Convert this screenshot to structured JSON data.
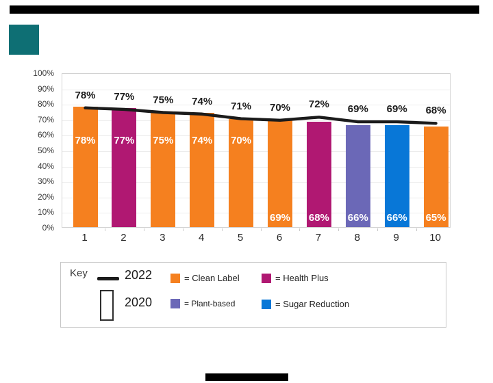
{
  "decor": {
    "top_bar_color": "#000000",
    "logo_block_color": "#0e6f74",
    "bottom_bar_color": "#000000"
  },
  "chart_data": {
    "type": "bar",
    "title": "",
    "xlabel": "",
    "ylabel": "",
    "categories": [
      "1",
      "2",
      "3",
      "4",
      "5",
      "6",
      "7",
      "8",
      "9",
      "10"
    ],
    "series": [
      {
        "name": "2020",
        "type": "bar",
        "values": [
          78,
          77,
          75,
          74,
          70,
          69,
          68,
          66,
          66,
          65
        ],
        "bar_colors": [
          "#f5801f",
          "#b01872",
          "#f5801f",
          "#f5801f",
          "#f5801f",
          "#f5801f",
          "#b01872",
          "#6b68b7",
          "#0877d7",
          "#f5801f"
        ],
        "bar_brands": [
          "Clean Label",
          "Health Plus",
          "Clean Label",
          "Clean Label",
          "Clean Label",
          "Clean Label",
          "Health Plus",
          "Plant-based",
          "Sugar Reduction",
          "Clean Label"
        ],
        "value_label_position": [
          "upper",
          "upper",
          "upper",
          "upper",
          "upper",
          "lower",
          "lower",
          "lower",
          "lower",
          "lower"
        ],
        "value_label_suffix": "%"
      },
      {
        "name": "2022",
        "type": "line",
        "values": [
          78,
          77,
          75,
          74,
          71,
          70,
          72,
          69,
          69,
          68
        ],
        "color": "#1b1b1b",
        "value_label_suffix": "%"
      }
    ],
    "ylim": [
      0,
      100
    ],
    "ytick_labels": [
      "0%",
      "10%",
      "20%",
      "30%",
      "40%",
      "50%",
      "60%",
      "70%",
      "80%",
      "90%",
      "100%"
    ],
    "grid": true,
    "legend_position": "bottom-box"
  },
  "legend": {
    "title": "Key",
    "entries": [
      {
        "swatch": "line",
        "label": "2022"
      },
      {
        "swatch": "open-bar",
        "label": "2020"
      }
    ],
    "brand_items": [
      {
        "label": "= Clean Label",
        "color": "#f5801f"
      },
      {
        "label": "= Health Plus",
        "color": "#b01872"
      },
      {
        "label": "= Plant-based",
        "color": "#6b68b7"
      },
      {
        "label": "= Sugar Reduction",
        "color": "#0877d7"
      }
    ]
  }
}
